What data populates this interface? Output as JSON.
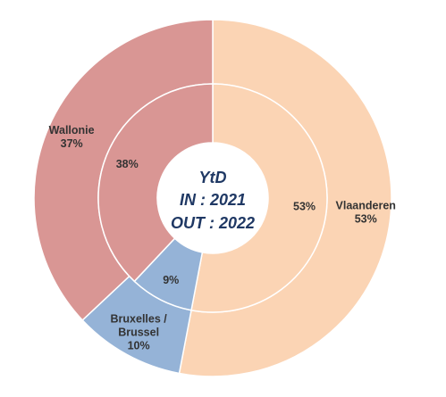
{
  "chart_data": {
    "type": "pie",
    "subtype": "nested-donut",
    "center_lines": [
      "YtD",
      "IN : 2021",
      "OUT : 2022"
    ],
    "categories": [
      "Vlaanderen",
      "Bruxelles / Brussel",
      "Wallonie"
    ],
    "category_label_lines": [
      [
        "Vlaanderen"
      ],
      [
        "Bruxelles /",
        "Brussel"
      ],
      [
        "Wallonie"
      ]
    ],
    "colors": {
      "outer": [
        "#FBD4B4",
        "#95B3D7",
        "#D99694"
      ],
      "inner": [
        "#FBD4B4",
        "#95B3D7",
        "#D99694"
      ]
    },
    "series": [
      {
        "ring": "outer",
        "values": [
          53,
          10,
          37
        ],
        "value_labels": [
          "53%",
          "10%",
          "37%"
        ]
      },
      {
        "ring": "inner",
        "values": [
          53,
          9,
          38
        ],
        "value_labels": [
          "53%",
          "9%",
          "38%"
        ]
      }
    ],
    "start_angle_deg": 0,
    "direction": "clockwise",
    "legend": "none"
  }
}
